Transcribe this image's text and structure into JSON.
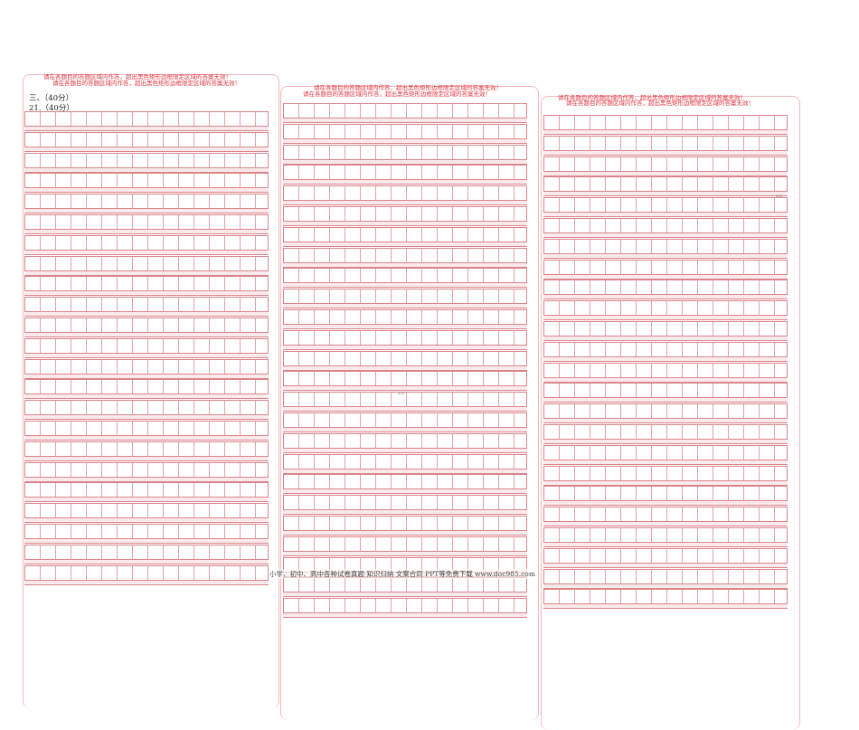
{
  "notice": "请在各题目的答题区域内作答，超出黑色矩形边框限定区域的答案无效！",
  "section_heading": "三、（40分）",
  "question_heading": "21.（40分）",
  "grid_mark": "400",
  "footer": "小学、初中、高中各种试卷真题  知识归纳  文案合同  PPT等免费下载    www.doc985.com",
  "colors": {
    "grid": "#d9848b",
    "notice": "#e0323c",
    "panel_border": "#f2b8bd"
  }
}
